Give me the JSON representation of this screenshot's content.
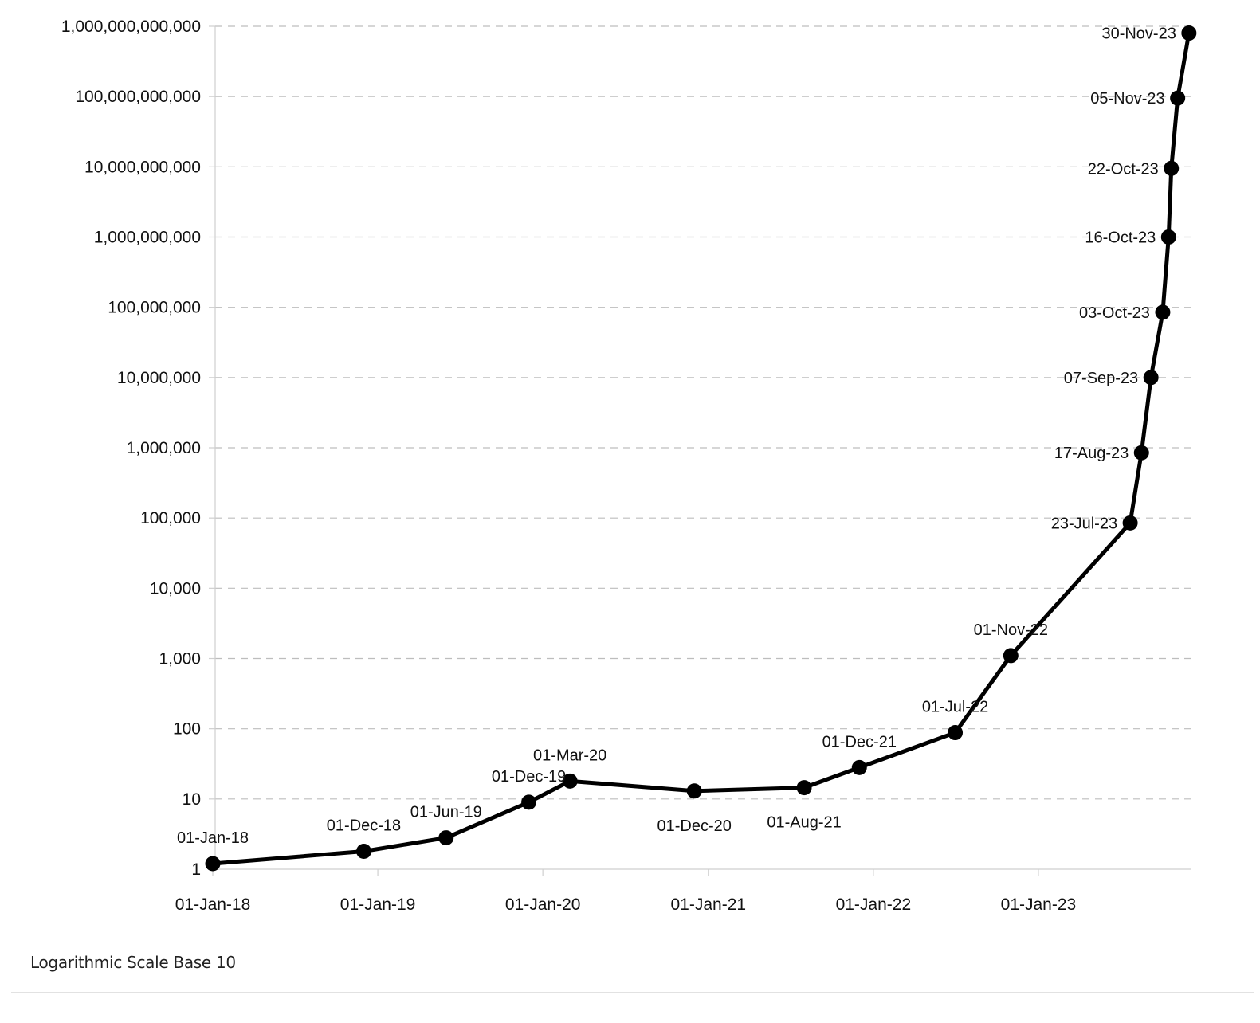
{
  "footnote": "Logarithmic Scale Base 10",
  "chart_data": {
    "type": "line",
    "title": "",
    "xlabel": "",
    "ylabel": "",
    "y_scale": "log10",
    "ylim": [
      1,
      1000000000000
    ],
    "grid": true,
    "legend": "none",
    "line_color": "#000000",
    "y_ticks": [
      {
        "value": 1,
        "label": "1"
      },
      {
        "value": 10,
        "label": "10"
      },
      {
        "value": 100,
        "label": "100"
      },
      {
        "value": 1000,
        "label": "1,000"
      },
      {
        "value": 10000,
        "label": "10,000"
      },
      {
        "value": 100000,
        "label": "100,000"
      },
      {
        "value": 1000000,
        "label": "1,000,000"
      },
      {
        "value": 10000000,
        "label": "10,000,000"
      },
      {
        "value": 100000000,
        "label": "100,000,000"
      },
      {
        "value": 1000000000,
        "label": "1,000,000,000"
      },
      {
        "value": 10000000000,
        "label": "10,000,000,000"
      },
      {
        "value": 100000000000,
        "label": "100,000,000,000"
      },
      {
        "value": 1000000000000,
        "label": "1,000,000,000,000"
      }
    ],
    "x_ticks": [
      {
        "value": "2018-01-01",
        "label": "01-Jan-18"
      },
      {
        "value": "2019-01-01",
        "label": "01-Jan-19"
      },
      {
        "value": "2020-01-01",
        "label": "01-Jan-20"
      },
      {
        "value": "2021-01-01",
        "label": "01-Jan-21"
      },
      {
        "value": "2022-01-01",
        "label": "01-Jan-22"
      },
      {
        "value": "2023-01-01",
        "label": "01-Jan-23"
      }
    ],
    "series": [
      {
        "points": [
          {
            "x": "2018-01-01",
            "y": 1.2,
            "label": "01-Jan-18"
          },
          {
            "x": "2018-12-01",
            "y": 1.8,
            "label": "01-Dec-18"
          },
          {
            "x": "2019-06-01",
            "y": 2.8,
            "label": "01-Jun-19"
          },
          {
            "x": "2019-12-01",
            "y": 9,
            "label": "01-Dec-19"
          },
          {
            "x": "2020-03-01",
            "y": 18,
            "label": "01-Mar-20"
          },
          {
            "x": "2020-12-01",
            "y": 13,
            "label": "01-Dec-20"
          },
          {
            "x": "2021-08-01",
            "y": 14.5,
            "label": "01-Aug-21"
          },
          {
            "x": "2021-12-01",
            "y": 28,
            "label": "01-Dec-21"
          },
          {
            "x": "2022-07-01",
            "y": 88,
            "label": "01-Jul-22"
          },
          {
            "x": "2022-11-01",
            "y": 1100,
            "label": "01-Nov-22"
          },
          {
            "x": "2023-07-23",
            "y": 85000,
            "label": "23-Jul-23"
          },
          {
            "x": "2023-08-17",
            "y": 850000,
            "label": "17-Aug-23"
          },
          {
            "x": "2023-09-07",
            "y": 10000000,
            "label": "07-Sep-23"
          },
          {
            "x": "2023-10-03",
            "y": 85000000,
            "label": "03-Oct-23"
          },
          {
            "x": "2023-10-16",
            "y": 1000000000,
            "label": "16-Oct-23"
          },
          {
            "x": "2023-10-22",
            "y": 9500000000,
            "label": "22-Oct-23"
          },
          {
            "x": "2023-11-05",
            "y": 95000000000,
            "label": "05-Nov-23"
          },
          {
            "x": "2023-11-30",
            "y": 800000000000,
            "label": "30-Nov-23"
          }
        ]
      }
    ]
  }
}
